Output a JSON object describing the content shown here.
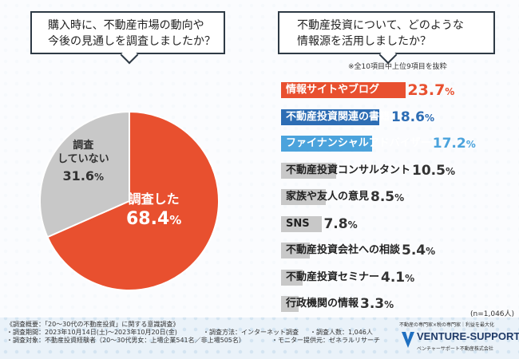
{
  "left_question": {
    "line1": "購入時に、不動産市場の動向や",
    "line2": "今後の見通しを調査しましたか？"
  },
  "right_question": {
    "line1": "不動産投資について、どのような",
    "line2": "情報源を活用しましたか？"
  },
  "sample_note": "※全10項目中上位9項目を抜粋",
  "n_note": "(n=1,046人)",
  "colors": {
    "highlight": "#e8502f",
    "dark_blue": "#2d6db4",
    "light_blue": "#4ba3dc",
    "gray": "#c8c8c8"
  },
  "chart_data": [
    {
      "type": "pie",
      "title": "購入時に、不動産市場の動向や今後の見通しを調査しましたか？",
      "slices": [
        {
          "label": "調査した",
          "value": 68.4,
          "unit": "%",
          "color": "#e8502f"
        },
        {
          "label_line1": "調査",
          "label_line2": "していない",
          "value": 31.6,
          "unit": "%",
          "color": "#c8c8c8"
        }
      ]
    },
    {
      "type": "bar",
      "title": "不動産投資について、どのような情報源を活用しましたか？",
      "unit": "%",
      "xlim": [
        0,
        25
      ],
      "categories": [
        "情報サイトやブログ",
        "不動産投資関連の書籍",
        "ファイナンシャルアドバイザー",
        "不動産投資コンサルタント",
        "家族や友人の意見",
        "SNS",
        "不動産投資会社への相談",
        "不動産投資セミナー",
        "行政機関の情報"
      ],
      "values": [
        23.7,
        18.6,
        17.2,
        10.5,
        8.5,
        7.8,
        5.4,
        4.1,
        3.3
      ],
      "colors": [
        "#e8502f",
        "#2d6db4",
        "#4ba3dc",
        "#c8c8c8",
        "#c8c8c8",
        "#c8c8c8",
        "#c8c8c8",
        "#c8c8c8",
        "#c8c8c8"
      ]
    }
  ],
  "footer": {
    "overview": "《調査概要：「20～30代の不動産投資」に関する意識調査》",
    "period": "・調査期間：2023年10月14日(土)～2023年10月20日(金)",
    "method": "・調査方法：インターネット調査",
    "count": "・調査人数：1,046人",
    "target": "・調査対象：不動産投資経験者（20～30代男女：上場企業541名／非上場505名）",
    "monitor": "・モニター提供元：ゼネラルリサーチ"
  },
  "logo": {
    "tagline": "不動産の専門家×税の専門家｜利益を最大化",
    "name": "VENTURE-SUPPORT",
    "sub": "ベンチャーサポート不動産株式会社"
  }
}
